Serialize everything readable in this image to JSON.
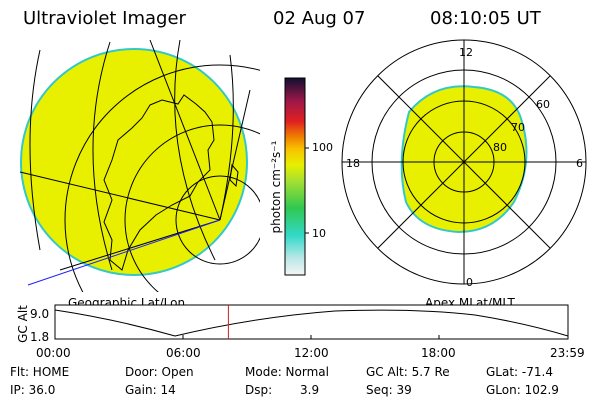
{
  "header": {
    "title": "Ultraviolet Imager",
    "date": "02 Aug 07",
    "time": "08:10:05 UT"
  },
  "colorbar": {
    "unit_label": "photon cm⁻²s⁻¹",
    "ticks": [
      "100",
      "10"
    ]
  },
  "geo_panel": {
    "label": "Geographic Lat/Lon"
  },
  "polar_panel": {
    "label": "Apex MLat/MLT",
    "mlt_labels": [
      "12",
      "18",
      "6",
      "0"
    ],
    "lat_labels": [
      "60",
      "70",
      "80"
    ]
  },
  "orbit_plot": {
    "ylabel": "GC Alt",
    "y_ticks": [
      "9.0",
      "1.8"
    ],
    "x_ticks": [
      "00:00",
      "06:00",
      "12:00",
      "18:00",
      "23:59"
    ],
    "current_time_fraction": 0.338
  },
  "status": {
    "flt": "Flt: HOME",
    "ip": "IP: 36.0",
    "door": "Door: Open",
    "gain": "Gain: 14",
    "mode": "Mode: Normal",
    "dsp_label": "Dsp:",
    "dsp_value": "3.9",
    "gc_alt": "GC Alt: 5.7 Re",
    "seq": "Seq: 39",
    "glat": "GLat: -71.4",
    "glon": "GLon: 102.9"
  },
  "colors": {
    "image_fill": "#e8f000",
    "image_edge": "#33c8c8",
    "time_marker": "#d02020",
    "geo_blue_line": "#2020ff"
  }
}
